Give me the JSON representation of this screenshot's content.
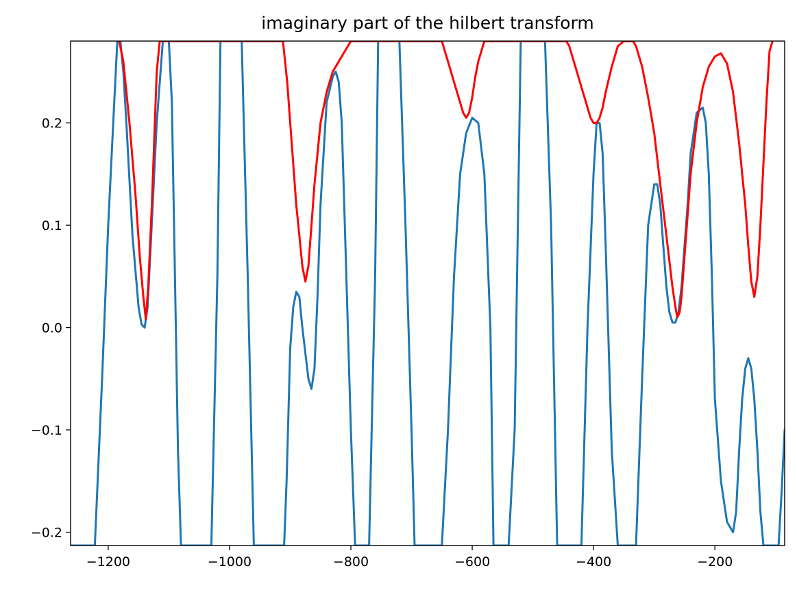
{
  "chart_data": {
    "type": "line",
    "title": "imaginary part of the hilbert transform",
    "xlabel": "",
    "ylabel": "",
    "xlim": [
      -1262,
      -85
    ],
    "ylim": [
      -0.213,
      0.28
    ],
    "grid": false,
    "legend": "none",
    "xticks": [
      -1200,
      -1000,
      -800,
      -600,
      -400,
      -200
    ],
    "xtick_labels": [
      "−1200",
      "−1000",
      "−800",
      "−600",
      "−400",
      "−200"
    ],
    "yticks": [
      -0.2,
      -0.1,
      0.0,
      0.1,
      0.2
    ],
    "ytick_labels": [
      "−0.2",
      "−0.1",
      "0.0",
      "0.1",
      "0.2"
    ],
    "series": [
      {
        "color": "#1f77b4",
        "x": [
          -1262,
          -1222,
          -1210,
          -1200,
          -1190,
          -1185,
          -1180,
          -1175,
          -1170,
          -1160,
          -1150,
          -1145,
          -1140,
          -1135,
          -1130,
          -1120,
          -1110,
          -1105,
          -1100,
          -1095,
          -1090,
          -1085,
          -1080,
          -1076,
          -1070,
          -1060,
          -1050,
          -1040,
          -1030,
          -1020,
          -1015,
          -1010,
          -1000,
          -990,
          -980,
          -970,
          -960,
          -955,
          -950,
          -940,
          -930,
          -920,
          -910,
          -906,
          -900,
          -895,
          -890,
          -885,
          -880,
          -870,
          -865,
          -860,
          -855,
          -850,
          -840,
          -830,
          -825,
          -820,
          -815,
          -810,
          -800,
          -793,
          -790,
          -780,
          -770,
          -760,
          -755,
          -750,
          -745,
          -740,
          -735,
          -730,
          -720,
          -710,
          -700,
          -695,
          -690,
          -680,
          -670,
          -660,
          -650,
          -640,
          -630,
          -620,
          -610,
          -600,
          -590,
          -580,
          -570,
          -565,
          -560,
          -550,
          -540,
          -530,
          -520,
          -515,
          -510,
          -500,
          -490,
          -480,
          -470,
          -460,
          -450,
          -440,
          -430,
          -420,
          -410,
          -400,
          -395,
          -390,
          -385,
          -380,
          -370,
          -360,
          -355,
          -350,
          -340,
          -330,
          -320,
          -310,
          -300,
          -295,
          -290,
          -285,
          -280,
          -275,
          -270,
          -265,
          -260,
          -255,
          -250,
          -245,
          -240,
          -230,
          -220,
          -215,
          -210,
          -205,
          -200,
          -190,
          -180,
          -170,
          -165,
          -160,
          -155,
          -150,
          -145,
          -140,
          -135,
          -130,
          -125,
          -120,
          -110,
          -100,
          -95,
          -90,
          -85
        ],
        "y": [
          -0.213,
          -0.213,
          -0.05,
          0.1,
          0.22,
          0.28,
          0.28,
          0.25,
          0.2,
          0.09,
          0.02,
          0.003,
          0.0,
          0.02,
          0.08,
          0.2,
          0.28,
          0.28,
          0.28,
          0.22,
          0.05,
          -0.12,
          -0.213,
          -0.213,
          -0.213,
          -0.213,
          -0.213,
          -0.213,
          -0.213,
          0.05,
          0.28,
          0.28,
          0.28,
          0.28,
          0.28,
          0.05,
          -0.213,
          -0.213,
          -0.213,
          -0.213,
          -0.213,
          -0.213,
          -0.213,
          -0.15,
          -0.02,
          0.02,
          0.035,
          0.03,
          0.0,
          -0.05,
          -0.06,
          -0.04,
          0.03,
          0.12,
          0.22,
          0.245,
          0.25,
          0.24,
          0.2,
          0.1,
          -0.1,
          -0.213,
          -0.213,
          -0.213,
          -0.213,
          0.05,
          0.28,
          0.28,
          0.28,
          0.28,
          0.28,
          0.28,
          0.28,
          0.1,
          -0.1,
          -0.213,
          -0.213,
          -0.213,
          -0.213,
          -0.213,
          -0.213,
          -0.1,
          0.05,
          0.15,
          0.19,
          0.205,
          0.2,
          0.15,
          0.0,
          -0.213,
          -0.213,
          -0.213,
          -0.213,
          -0.1,
          0.28,
          0.28,
          0.28,
          0.28,
          0.28,
          0.28,
          0.1,
          -0.213,
          -0.213,
          -0.213,
          -0.213,
          -0.213,
          0.0,
          0.15,
          0.2,
          0.2,
          0.17,
          0.08,
          -0.12,
          -0.213,
          -0.213,
          -0.213,
          -0.213,
          -0.213,
          -0.05,
          0.1,
          0.14,
          0.14,
          0.12,
          0.08,
          0.04,
          0.015,
          0.005,
          0.005,
          0.015,
          0.04,
          0.08,
          0.12,
          0.17,
          0.21,
          0.215,
          0.2,
          0.15,
          0.05,
          -0.07,
          -0.15,
          -0.19,
          -0.2,
          -0.18,
          -0.12,
          -0.07,
          -0.04,
          -0.03,
          -0.04,
          -0.07,
          -0.12,
          -0.18,
          -0.213,
          -0.213,
          -0.213,
          -0.213,
          -0.16,
          -0.1
        ]
      },
      {
        "color": "#ff0000",
        "x": [
          -1182,
          -1175,
          -1165,
          -1155,
          -1148,
          -1142,
          -1138,
          -1134,
          -1128,
          -1120,
          -1115,
          -912,
          -905,
          -900,
          -895,
          -890,
          -885,
          -880,
          -875,
          -870,
          -865,
          -860,
          -850,
          -840,
          -830,
          -820,
          -810,
          -800,
          -795,
          -650,
          -645,
          -640,
          -635,
          -630,
          -620,
          -615,
          -610,
          -605,
          -600,
          -595,
          -590,
          -580,
          -575,
          -445,
          -440,
          -435,
          -430,
          -425,
          -420,
          -415,
          -410,
          -405,
          -400,
          -395,
          -390,
          -385,
          -380,
          -370,
          -360,
          -350,
          -340,
          -335,
          -330,
          -320,
          -310,
          -300,
          -290,
          -280,
          -270,
          -265,
          -262,
          -258,
          -255,
          -250,
          -245,
          -240,
          -230,
          -220,
          -210,
          -200,
          -190,
          -180,
          -170,
          -160,
          -150,
          -145,
          -140,
          -135,
          -130,
          -125,
          -120,
          -115,
          -110,
          -105
        ],
        "y": [
          0.28,
          0.26,
          0.2,
          0.13,
          0.07,
          0.03,
          0.008,
          0.04,
          0.12,
          0.25,
          0.28,
          0.28,
          0.24,
          0.2,
          0.16,
          0.12,
          0.09,
          0.06,
          0.045,
          0.06,
          0.1,
          0.14,
          0.2,
          0.23,
          0.25,
          0.26,
          0.27,
          0.28,
          0.28,
          0.28,
          0.27,
          0.26,
          0.25,
          0.24,
          0.22,
          0.21,
          0.205,
          0.21,
          0.225,
          0.245,
          0.26,
          0.28,
          0.28,
          0.28,
          0.275,
          0.265,
          0.255,
          0.245,
          0.235,
          0.225,
          0.215,
          0.205,
          0.2,
          0.2,
          0.205,
          0.215,
          0.23,
          0.255,
          0.275,
          0.28,
          0.28,
          0.28,
          0.275,
          0.255,
          0.225,
          0.19,
          0.14,
          0.09,
          0.04,
          0.02,
          0.01,
          0.015,
          0.03,
          0.07,
          0.11,
          0.15,
          0.2,
          0.235,
          0.255,
          0.265,
          0.268,
          0.258,
          0.23,
          0.18,
          0.12,
          0.08,
          0.045,
          0.03,
          0.05,
          0.1,
          0.16,
          0.22,
          0.27,
          0.28
        ]
      }
    ]
  }
}
